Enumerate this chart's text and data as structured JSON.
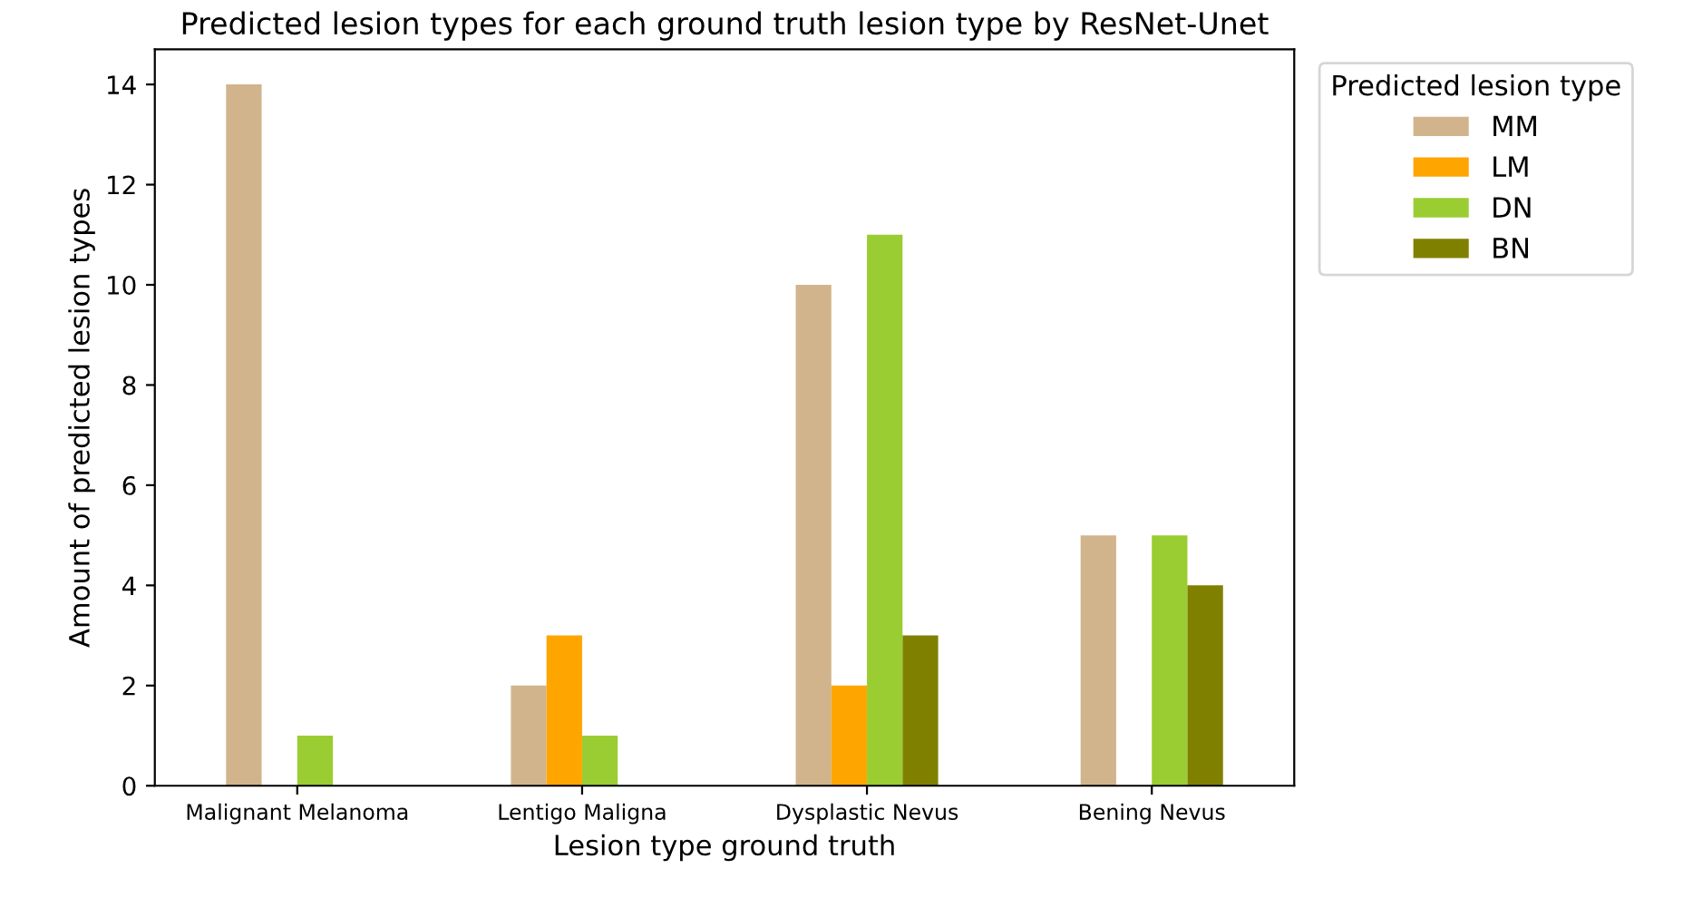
{
  "chart_data": {
    "type": "bar",
    "title": "Predicted lesion types for each ground truth lesion type by ResNet-Unet",
    "xlabel": "Lesion type ground truth",
    "ylabel": "Amount of predicted lesion types",
    "legend_title": "Predicted lesion type",
    "categories": [
      "Malignant Melanoma",
      "Lentigo Maligna",
      "Dysplastic Nevus",
      "Bening Nevus"
    ],
    "series": [
      {
        "name": "MM",
        "color": "#d2b48c",
        "values": [
          14,
          2,
          10,
          5
        ]
      },
      {
        "name": "LM",
        "color": "#ffa500",
        "values": [
          0,
          3,
          2,
          0
        ]
      },
      {
        "name": "DN",
        "color": "#9acd32",
        "values": [
          1,
          1,
          11,
          5
        ]
      },
      {
        "name": "BN",
        "color": "#808000",
        "values": [
          0,
          0,
          3,
          4
        ]
      }
    ],
    "ylim": [
      0,
      14.7
    ],
    "yticks": [
      0,
      2,
      4,
      6,
      8,
      10,
      12,
      14
    ],
    "grid": false,
    "legend": "top right"
  }
}
